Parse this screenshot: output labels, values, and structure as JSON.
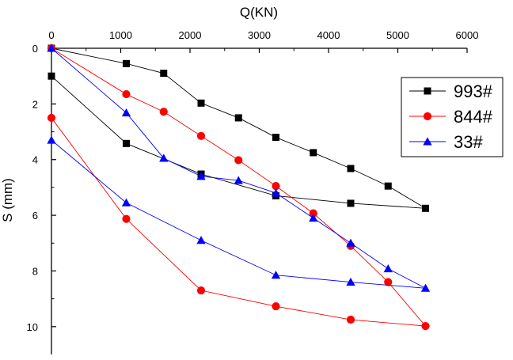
{
  "chart_data": {
    "type": "line",
    "title": "",
    "xlabel": "Q(KN)",
    "ylabel": "S (mm)",
    "x_axis_position": "top",
    "y_inverted": true,
    "xlim": [
      0,
      6000
    ],
    "ylim": [
      0,
      11
    ],
    "xticks": [
      "0",
      "1000",
      "2000",
      "3000",
      "4000",
      "5000",
      "6000"
    ],
    "yticks": [
      "0",
      "2",
      "4",
      "6",
      "8",
      "10"
    ],
    "grid": false,
    "legend_position": "top-right",
    "series": [
      {
        "name": "993#",
        "color": "#000000",
        "marker": "square",
        "x": [
          0,
          1080,
          1620,
          2160,
          2700,
          3240,
          3780,
          4320,
          4860,
          5400,
          4320,
          3240,
          2160,
          1080,
          0
        ],
        "y": [
          0,
          0.55,
          0.9,
          1.97,
          2.5,
          3.2,
          3.75,
          4.32,
          4.95,
          5.75,
          5.57,
          5.3,
          4.52,
          3.42,
          1.0
        ]
      },
      {
        "name": "844#",
        "color": "#ff0000",
        "marker": "circle",
        "x": [
          0,
          1080,
          1620,
          2160,
          2700,
          3240,
          3780,
          4320,
          4860,
          5400,
          4320,
          3240,
          2160,
          1080,
          0
        ],
        "y": [
          0,
          1.65,
          2.28,
          3.15,
          4.02,
          4.95,
          5.93,
          7.1,
          8.4,
          9.98,
          9.75,
          9.27,
          8.7,
          6.13,
          2.5
        ]
      },
      {
        "name": "33#",
        "color": "#0000ff",
        "marker": "triangle",
        "x": [
          0,
          1080,
          1620,
          2160,
          2700,
          3240,
          3780,
          4320,
          4860,
          5400,
          4320,
          3240,
          2160,
          1080,
          0
        ],
        "y": [
          0,
          2.32,
          3.95,
          4.6,
          4.75,
          5.2,
          6.1,
          7.0,
          7.92,
          8.62,
          8.4,
          8.15,
          6.9,
          5.55,
          3.3
        ]
      }
    ]
  }
}
